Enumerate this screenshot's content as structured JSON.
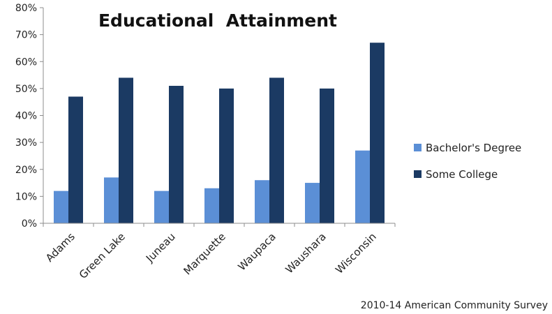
{
  "chart_data": {
    "type": "bar",
    "title": "Educational  Attainment",
    "xlabel": "",
    "ylabel": "",
    "categories": [
      "Adams",
      "Green Lake",
      "Juneau",
      "Marquette",
      "Waupaca",
      "Waushara",
      "Wisconsin"
    ],
    "series": [
      {
        "name": "Bachelor's Degree",
        "color": "#5b8fd6",
        "values": [
          0.12,
          0.17,
          0.12,
          0.13,
          0.16,
          0.15,
          0.27
        ]
      },
      {
        "name": "Some College",
        "color": "#1b3a63",
        "values": [
          0.47,
          0.54,
          0.51,
          0.5,
          0.54,
          0.5,
          0.67
        ]
      }
    ],
    "ylim": [
      0,
      0.8
    ],
    "yticks": [
      0,
      0.1,
      0.2,
      0.3,
      0.4,
      0.5,
      0.6,
      0.7,
      0.8
    ],
    "ytick_labels": [
      "0%",
      "10%",
      "20%",
      "30%",
      "40%",
      "50%",
      "60%",
      "70%",
      "80%"
    ],
    "grid": false,
    "legend_position": "right"
  },
  "source_note": "2010-14 American Community Survey"
}
